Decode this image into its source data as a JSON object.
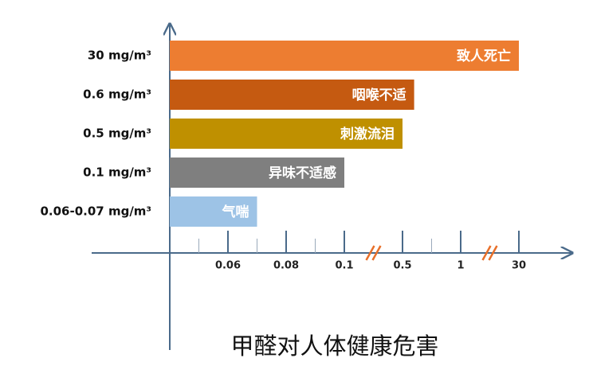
{
  "chart_data": {
    "type": "bar",
    "orientation": "horizontal",
    "title": "甲醛对人体健康危害",
    "categories": [
      "30 mg/m³",
      "0.6 mg/m³",
      "0.5 mg/m³",
      "0.1 mg/m³",
      "0.06-0.07 mg/m³"
    ],
    "values": [
      30,
      0.6,
      0.5,
      0.1,
      0.07
    ],
    "bar_labels": [
      "致人死亡",
      "咽喉不适",
      "刺激流泪",
      "异味不适感",
      "气喘"
    ],
    "colors": [
      "#ed7d31",
      "#c55a11",
      "#bf9000",
      "#7f7f7f",
      "#9dc3e6"
    ],
    "xlim": [
      0.04,
      30
    ],
    "xticks": [
      0.06,
      0.08,
      0.1,
      0.5,
      1,
      30
    ],
    "minor_xticks": [
      0.05,
      0.07,
      0.09,
      0.75
    ],
    "axis_breaks": [
      [
        0.1,
        0.5
      ],
      [
        1,
        30
      ]
    ],
    "break_color": "#e8702a"
  }
}
